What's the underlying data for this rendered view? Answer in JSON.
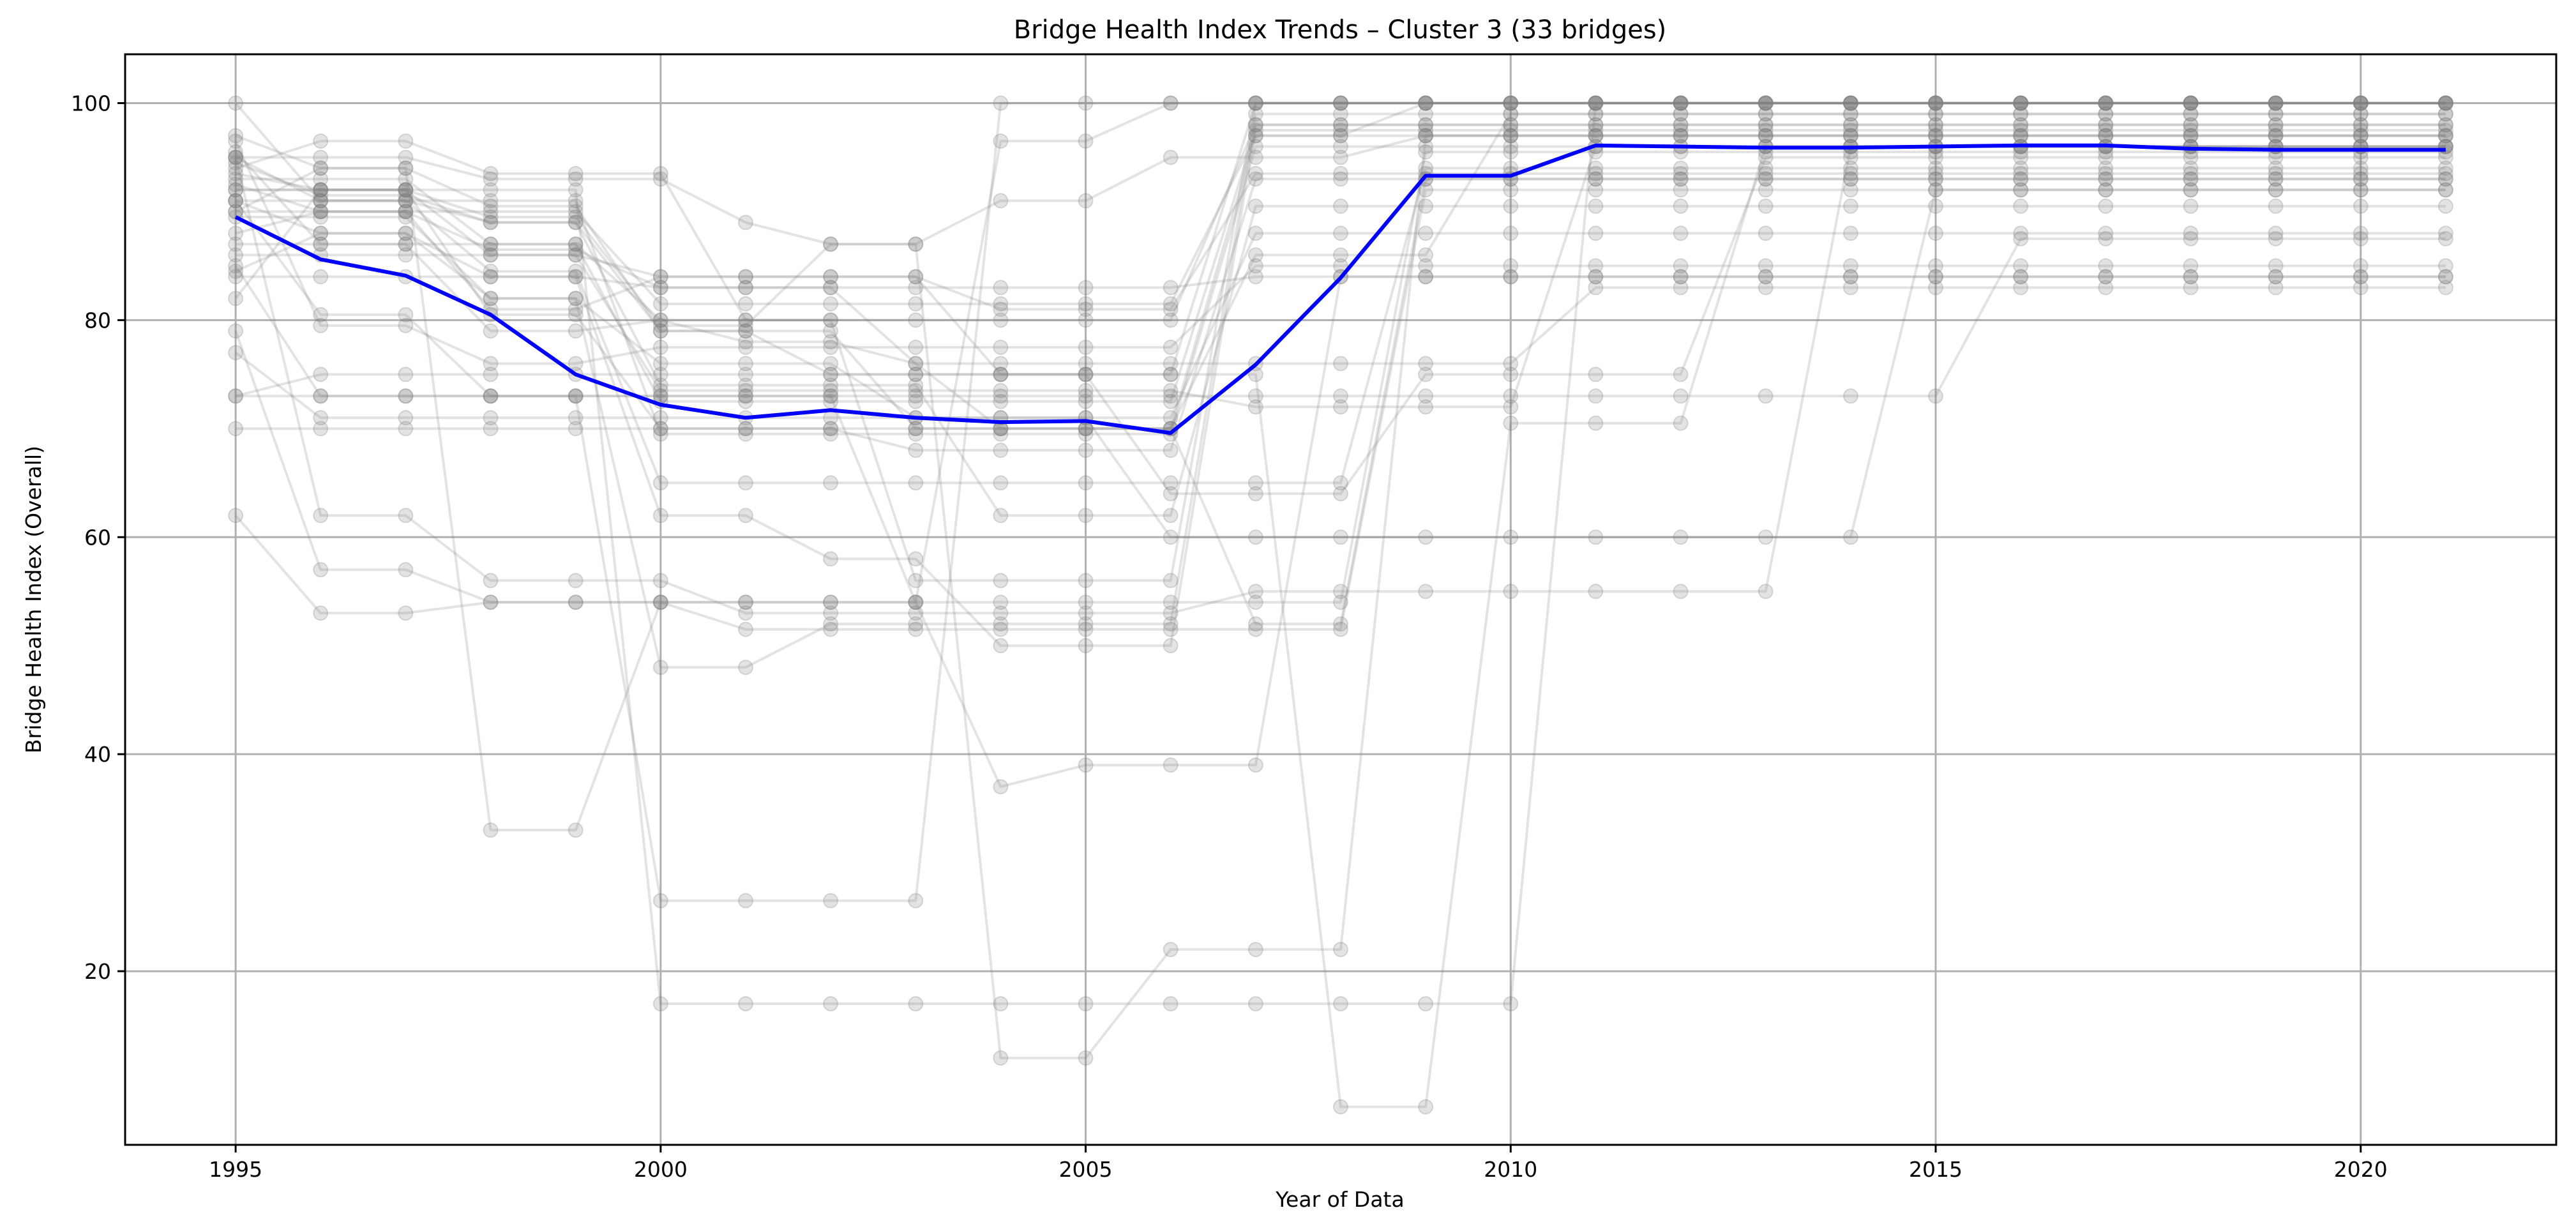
{
  "chart_data": {
    "type": "line",
    "title": "Bridge Health Index Trends – Cluster 3 (33 bridges)",
    "xlabel": "Year of Data",
    "ylabel": "Bridge Health Index (Overall)",
    "xlim": [
      1993.7,
      2022.3
    ],
    "ylim": [
      4,
      104.5
    ],
    "xticks": [
      1995,
      2000,
      2005,
      2010,
      2015,
      2020
    ],
    "yticks": [
      20,
      40,
      60,
      80,
      100
    ],
    "grid": true,
    "colors": {
      "mean": "#0000ff",
      "bridges": "#808080"
    },
    "x": [
      1995,
      1996,
      1997,
      1998,
      1999,
      2000,
      2001,
      2002,
      2003,
      2004,
      2005,
      2006,
      2007,
      2008,
      2009,
      2010,
      2011,
      2012,
      2013,
      2014,
      2015,
      2016,
      2017,
      2018,
      2019,
      2020,
      2021
    ],
    "mean": [
      89.5,
      85.6,
      84.1,
      80.5,
      75.0,
      72.2,
      71.0,
      71.7,
      71.0,
      70.6,
      70.7,
      69.6,
      75.9,
      83.9,
      93.3,
      93.3,
      96.1,
      96.0,
      95.9,
      95.9,
      96.0,
      96.1,
      96.1,
      95.8,
      95.7,
      95.7,
      95.7
    ],
    "series": [
      {
        "values": [
          100,
          91,
          91,
          89,
          89,
          79,
          79,
          79,
          70,
          70,
          70,
          70,
          97,
          97,
          100,
          100,
          100,
          100,
          100,
          100,
          100,
          100,
          100,
          100,
          100,
          100,
          100
        ]
      },
      {
        "values": [
          95,
          95,
          95,
          93,
          93,
          93,
          89,
          87,
          87,
          12,
          12,
          22,
          22,
          22,
          97,
          97,
          97,
          97,
          97,
          97,
          97,
          97,
          97,
          97,
          97,
          97,
          97
        ]
      },
      {
        "values": [
          92,
          92,
          92,
          89.5,
          89.5,
          79.5,
          79.5,
          87,
          87,
          91,
          91,
          95,
          95,
          95,
          97,
          97,
          97,
          97,
          97,
          97,
          97,
          97,
          97,
          97,
          97,
          97,
          97
        ]
      },
      {
        "values": [
          94,
          96.5,
          96.5,
          93.5,
          93.5,
          93.5,
          80,
          80,
          56,
          56,
          56,
          56,
          100,
          100,
          100,
          100,
          100,
          100,
          100,
          100,
          100,
          100,
          100,
          100,
          100,
          100,
          100
        ]
      },
      {
        "values": [
          91,
          80.5,
          80.5,
          73,
          73,
          26.5,
          26.5,
          26.5,
          26.5,
          100,
          100,
          100,
          100,
          100,
          100,
          100,
          100,
          100,
          100,
          100,
          100,
          100,
          100,
          100,
          100,
          100,
          100
        ]
      },
      {
        "values": [
          95,
          62,
          62,
          56,
          56,
          56,
          53,
          53,
          53,
          53,
          53,
          53,
          55,
          55,
          55,
          55,
          55,
          55,
          55,
          96,
          96,
          96,
          96,
          96,
          96,
          96,
          96
        ]
      },
      {
        "values": [
          86,
          86,
          86,
          86,
          86,
          84,
          84,
          84,
          84,
          75,
          75,
          64,
          64,
          64,
          75,
          75,
          75,
          75,
          95,
          95,
          95,
          95,
          95,
          95,
          95,
          95,
          95
        ]
      },
      {
        "values": [
          73,
          75,
          75,
          75,
          75,
          75,
          75,
          75,
          75,
          75,
          75,
          75,
          100,
          100,
          100,
          100,
          100,
          100,
          100,
          100,
          100,
          100,
          100,
          100,
          100,
          100,
          100
        ]
      },
      {
        "values": [
          79,
          57,
          57,
          54,
          54,
          54,
          54,
          54,
          54,
          96.5,
          96.5,
          100,
          100,
          100,
          100,
          100,
          100,
          100,
          100,
          100,
          100,
          100,
          100,
          100,
          100,
          100,
          100
        ]
      },
      {
        "values": [
          70,
          70,
          70,
          70,
          70,
          70,
          70,
          70,
          70,
          70,
          70,
          70,
          52,
          52,
          93,
          93,
          93,
          93,
          93,
          93,
          93,
          93,
          93,
          93,
          93,
          93,
          93
        ]
      },
      {
        "values": [
          62,
          53,
          53,
          54,
          54,
          54,
          54,
          54,
          54,
          37,
          39,
          39,
          39,
          84,
          84,
          84,
          84,
          84,
          84,
          84,
          84,
          84,
          84,
          84,
          84,
          84,
          84
        ]
      },
      {
        "values": [
          82,
          92,
          92,
          92,
          92,
          17,
          17,
          17,
          17,
          17,
          17,
          17,
          17,
          17,
          17,
          17,
          100,
          100,
          100,
          100,
          100,
          100,
          100,
          100,
          100,
          100,
          100
        ]
      },
      {
        "values": [
          85,
          73,
          73,
          73,
          73,
          73,
          73,
          73,
          73,
          73,
          73,
          73,
          73,
          73,
          73,
          73,
          73,
          73,
          73,
          73,
          73,
          87.5,
          87.5,
          87.5,
          87.5,
          87.5,
          87.5
        ]
      },
      {
        "values": [
          77,
          71,
          71,
          71,
          71,
          71,
          71,
          71,
          71,
          71,
          71,
          60,
          60,
          60,
          60,
          60,
          60,
          60,
          60,
          60,
          92,
          92,
          92,
          92,
          92,
          92,
          92
        ]
      },
      {
        "values": [
          90,
          94,
          94,
          90.5,
          90.5,
          79,
          79,
          75,
          75,
          75,
          75,
          75,
          75,
          7.5,
          7.5,
          70.5,
          70.5,
          70.5,
          96,
          96,
          96,
          96,
          96,
          96,
          96,
          96,
          96
        ]
      },
      {
        "values": [
          97,
          94,
          94,
          33,
          33,
          54,
          51.5,
          51.5,
          51.5,
          51.5,
          51.5,
          51.5,
          51.5,
          51.5,
          92,
          92,
          92,
          92,
          92,
          92,
          92,
          92,
          92,
          92,
          92,
          92,
          92
        ]
      },
      {
        "values": [
          84.5,
          88,
          88,
          82,
          82,
          48,
          48,
          52,
          52,
          52,
          52,
          52,
          99,
          99,
          99,
          99,
          99,
          99,
          99,
          99,
          99,
          99,
          99,
          99,
          99,
          99,
          99
        ]
      },
      {
        "values": [
          91,
          88,
          88,
          84,
          84,
          62,
          62,
          58,
          58,
          50,
          50,
          50,
          98,
          98,
          98,
          98,
          98,
          98,
          98,
          98,
          98,
          98,
          98,
          98,
          98,
          98,
          98
        ]
      },
      {
        "values": [
          92.5,
          90,
          90,
          86.5,
          86.5,
          83,
          83,
          83,
          76,
          76,
          76,
          76,
          76,
          76,
          76,
          76,
          83,
          83,
          83,
          83,
          83,
          83,
          83,
          83,
          83,
          83,
          83
        ]
      },
      {
        "values": [
          93,
          93,
          93,
          87,
          87,
          80,
          78,
          78,
          76,
          70,
          70,
          70,
          86,
          86,
          86,
          99,
          99,
          99,
          99,
          99,
          99,
          99,
          99,
          99,
          99,
          99,
          99
        ]
      },
      {
        "values": [
          95,
          91,
          91,
          84.5,
          84.5,
          65,
          65,
          65,
          65,
          65,
          65,
          65,
          65,
          65,
          94,
          94,
          94,
          94,
          94,
          94,
          94,
          94,
          94,
          94,
          94,
          94,
          94
        ]
      },
      {
        "values": [
          89.5,
          89.5,
          89.5,
          82,
          82,
          76,
          76,
          76,
          71,
          71,
          71,
          71,
          88,
          88,
          88,
          88,
          88,
          88,
          88,
          88,
          88,
          88,
          88,
          88,
          88,
          88,
          88
        ]
      },
      {
        "values": [
          94.5,
          91.5,
          91.5,
          89,
          89,
          74,
          74,
          74,
          74,
          62,
          62,
          62,
          90.5,
          90.5,
          90.5,
          90.5,
          90.5,
          90.5,
          90.5,
          90.5,
          90.5,
          90.5,
          90.5,
          90.5,
          90.5,
          90.5,
          90.5
        ]
      },
      {
        "values": [
          88,
          90,
          90,
          81,
          81,
          84,
          84,
          84,
          84,
          81,
          81,
          81,
          93.5,
          93.5,
          93.5,
          93.5,
          93.5,
          93.5,
          93.5,
          93.5,
          93.5,
          93.5,
          93.5,
          93.5,
          93.5,
          93.5,
          93.5
        ]
      },
      {
        "values": [
          96.5,
          79.5,
          79.5,
          76,
          76,
          77.5,
          77.5,
          77.5,
          77.5,
          77.5,
          77.5,
          77.5,
          85,
          85,
          85,
          85,
          85,
          85,
          85,
          85,
          85,
          85,
          85,
          85,
          85,
          85,
          85
        ]
      },
      {
        "values": [
          92,
          92,
          92,
          80.5,
          80.5,
          70,
          70,
          70,
          68,
          68,
          68,
          68,
          93,
          93,
          93,
          93,
          93,
          93,
          93,
          93,
          93,
          93,
          93,
          93,
          93,
          93,
          93
        ]
      },
      {
        "values": [
          73,
          73,
          73,
          73,
          73,
          73,
          73,
          73,
          54,
          54,
          54,
          54,
          54,
          54,
          95.5,
          95.5,
          95.5,
          95.5,
          95.5,
          95.5,
          95.5,
          95.5,
          95.5,
          95.5,
          95.5,
          95.5,
          95.5
        ]
      },
      {
        "values": [
          84,
          84,
          84,
          84,
          84,
          83,
          83,
          83,
          83,
          83,
          83,
          83,
          84,
          84,
          84,
          84,
          84,
          84,
          84,
          84,
          84,
          84,
          84,
          84,
          84,
          84,
          84
        ]
      },
      {
        "values": [
          91,
          91,
          91,
          91,
          91,
          69.5,
          69.5,
          69.5,
          69.5,
          69.5,
          69.5,
          69.5,
          96,
          96,
          96,
          96,
          96,
          96,
          96,
          96,
          96,
          96,
          96,
          96,
          96,
          96,
          96
        ]
      },
      {
        "values": [
          93.5,
          92,
          92,
          86,
          86,
          73.5,
          73.5,
          73.5,
          73.5,
          73.5,
          73.5,
          73.5,
          72,
          72,
          72,
          72,
          96,
          96,
          96,
          96,
          96,
          96,
          96,
          96,
          96,
          96,
          96
        ]
      },
      {
        "values": [
          90,
          90,
          90,
          90,
          90,
          81.5,
          81.5,
          81.5,
          81.5,
          81.5,
          81.5,
          81.5,
          97,
          97,
          97,
          97,
          97,
          97,
          97,
          97,
          97,
          97,
          97,
          97,
          97,
          97,
          97
        ]
      },
      {
        "values": [
          95.5,
          87,
          87,
          87,
          87,
          72.5,
          72.5,
          72.5,
          72.5,
          72.5,
          72.5,
          72.5,
          97.5,
          97.5,
          97.5,
          97.5,
          97.5,
          97.5,
          97.5,
          97.5,
          97.5,
          97.5,
          97.5,
          97.5,
          97.5,
          97.5,
          97.5
        ]
      },
      {
        "values": [
          87,
          87,
          87,
          79,
          79,
          80,
          80,
          80,
          80,
          80,
          80,
          80,
          98,
          98,
          98,
          98,
          98,
          98,
          98,
          98,
          98,
          98,
          98,
          98,
          98,
          98,
          98
        ]
      }
    ]
  }
}
